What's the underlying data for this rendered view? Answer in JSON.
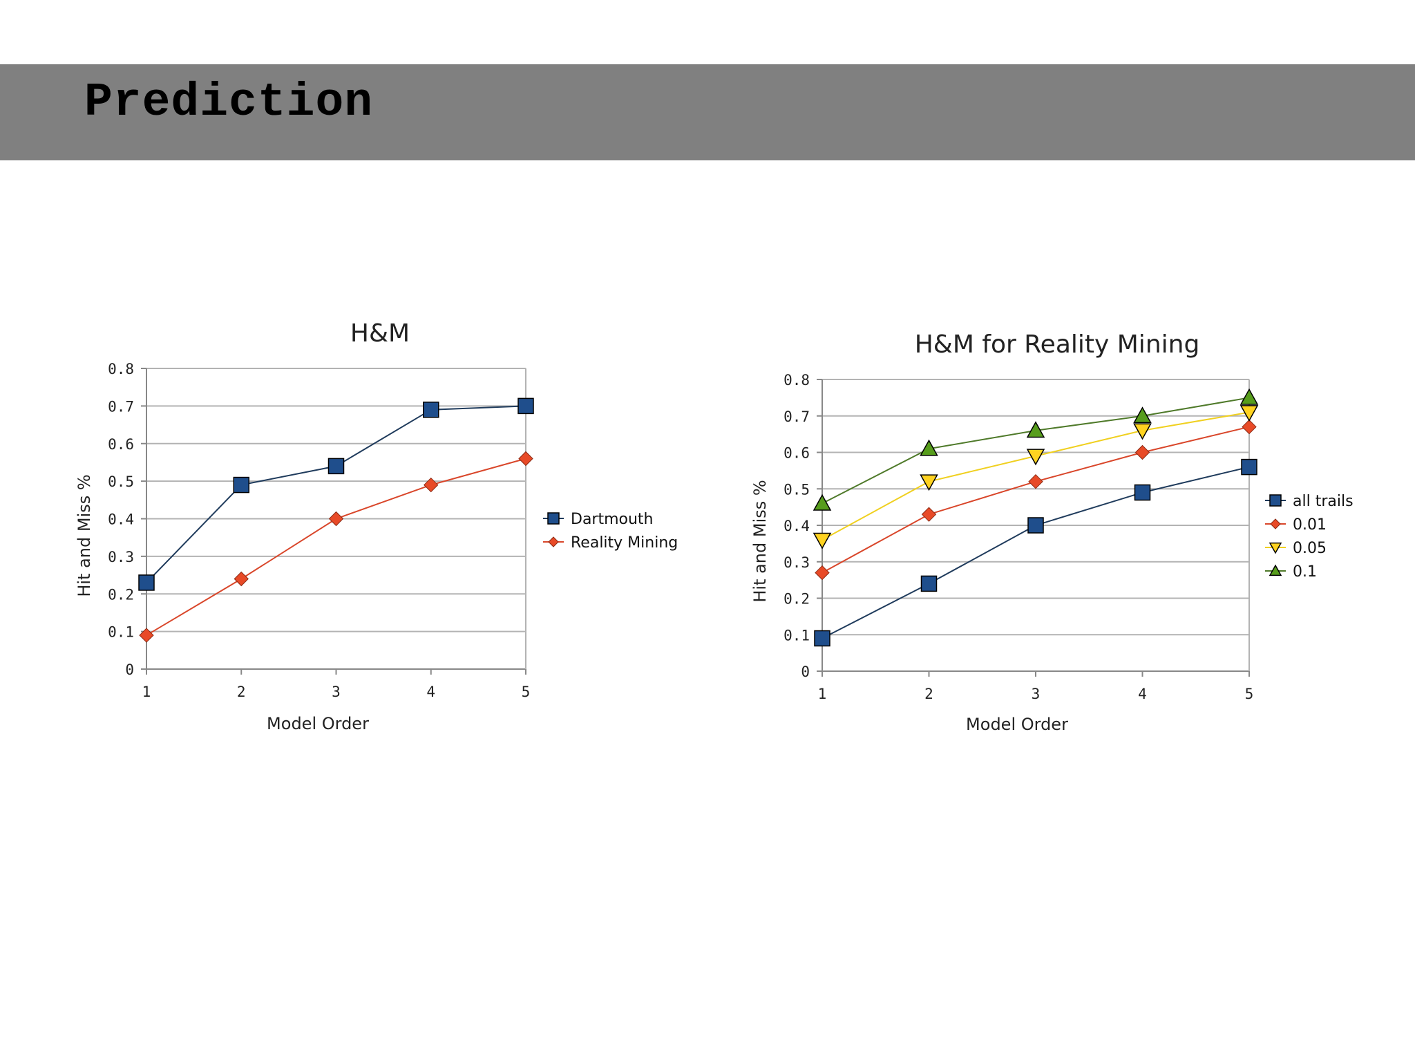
{
  "slide": {
    "title": "Prediction"
  },
  "chart_data": [
    {
      "type": "line",
      "title": "H&M",
      "xlabel": "Model Order",
      "ylabel": "Hit and Miss %",
      "x": [
        1,
        2,
        3,
        4,
        5
      ],
      "x_tick_labels": [
        "1",
        "2",
        "3",
        "4",
        "5"
      ],
      "ylim": [
        0,
        0.8
      ],
      "y_ticks": [
        0,
        0.1,
        0.2,
        0.3,
        0.4,
        0.5,
        0.6,
        0.7,
        0.8
      ],
      "y_tick_labels": [
        "0",
        "0.1",
        "0.2",
        "0.3",
        "0.4",
        "0.5",
        "0.6",
        "0.7",
        "0.8"
      ],
      "grid": true,
      "legend_position": "right",
      "series": [
        {
          "name": "Dartmouth",
          "values": [
            0.23,
            0.49,
            0.54,
            0.69,
            0.7
          ],
          "color": "#1f4e8c",
          "line_color": "#1f3b5c",
          "marker": "square"
        },
        {
          "name": "Reality Mining",
          "values": [
            0.09,
            0.24,
            0.4,
            0.49,
            0.56
          ],
          "color": "#e84a27",
          "line_color": "#d9462a",
          "marker": "diamond"
        }
      ]
    },
    {
      "type": "line",
      "title": "H&M for Reality Mining",
      "xlabel": "Model Order",
      "ylabel": "Hit and Miss %",
      "x": [
        1,
        2,
        3,
        4,
        5
      ],
      "x_tick_labels": [
        "1",
        "2",
        "3",
        "4",
        "5"
      ],
      "ylim": [
        0,
        0.8
      ],
      "y_ticks": [
        0,
        0.1,
        0.2,
        0.3,
        0.4,
        0.5,
        0.6,
        0.7,
        0.8
      ],
      "y_tick_labels": [
        "0",
        "0.1",
        "0.2",
        "0.3",
        "0.4",
        "0.5",
        "0.6",
        "0.7",
        "0.8"
      ],
      "grid": true,
      "legend_position": "right",
      "series": [
        {
          "name": "all trails",
          "values": [
            0.09,
            0.24,
            0.4,
            0.49,
            0.56
          ],
          "color": "#1f4e8c",
          "line_color": "#1f3b5c",
          "marker": "square"
        },
        {
          "name": "0.01",
          "values": [
            0.27,
            0.43,
            0.52,
            0.6,
            0.67
          ],
          "color": "#e84a27",
          "line_color": "#d9462a",
          "marker": "diamond"
        },
        {
          "name": "0.05",
          "values": [
            0.36,
            0.52,
            0.59,
            0.66,
            0.71
          ],
          "color": "#ffd320",
          "line_color": "#f0d020",
          "marker": "triangle-down"
        },
        {
          "name": "0.1",
          "values": [
            0.46,
            0.61,
            0.66,
            0.7,
            0.75
          ],
          "color": "#579d1c",
          "line_color": "#4f7a2a",
          "marker": "triangle-up"
        }
      ]
    }
  ]
}
